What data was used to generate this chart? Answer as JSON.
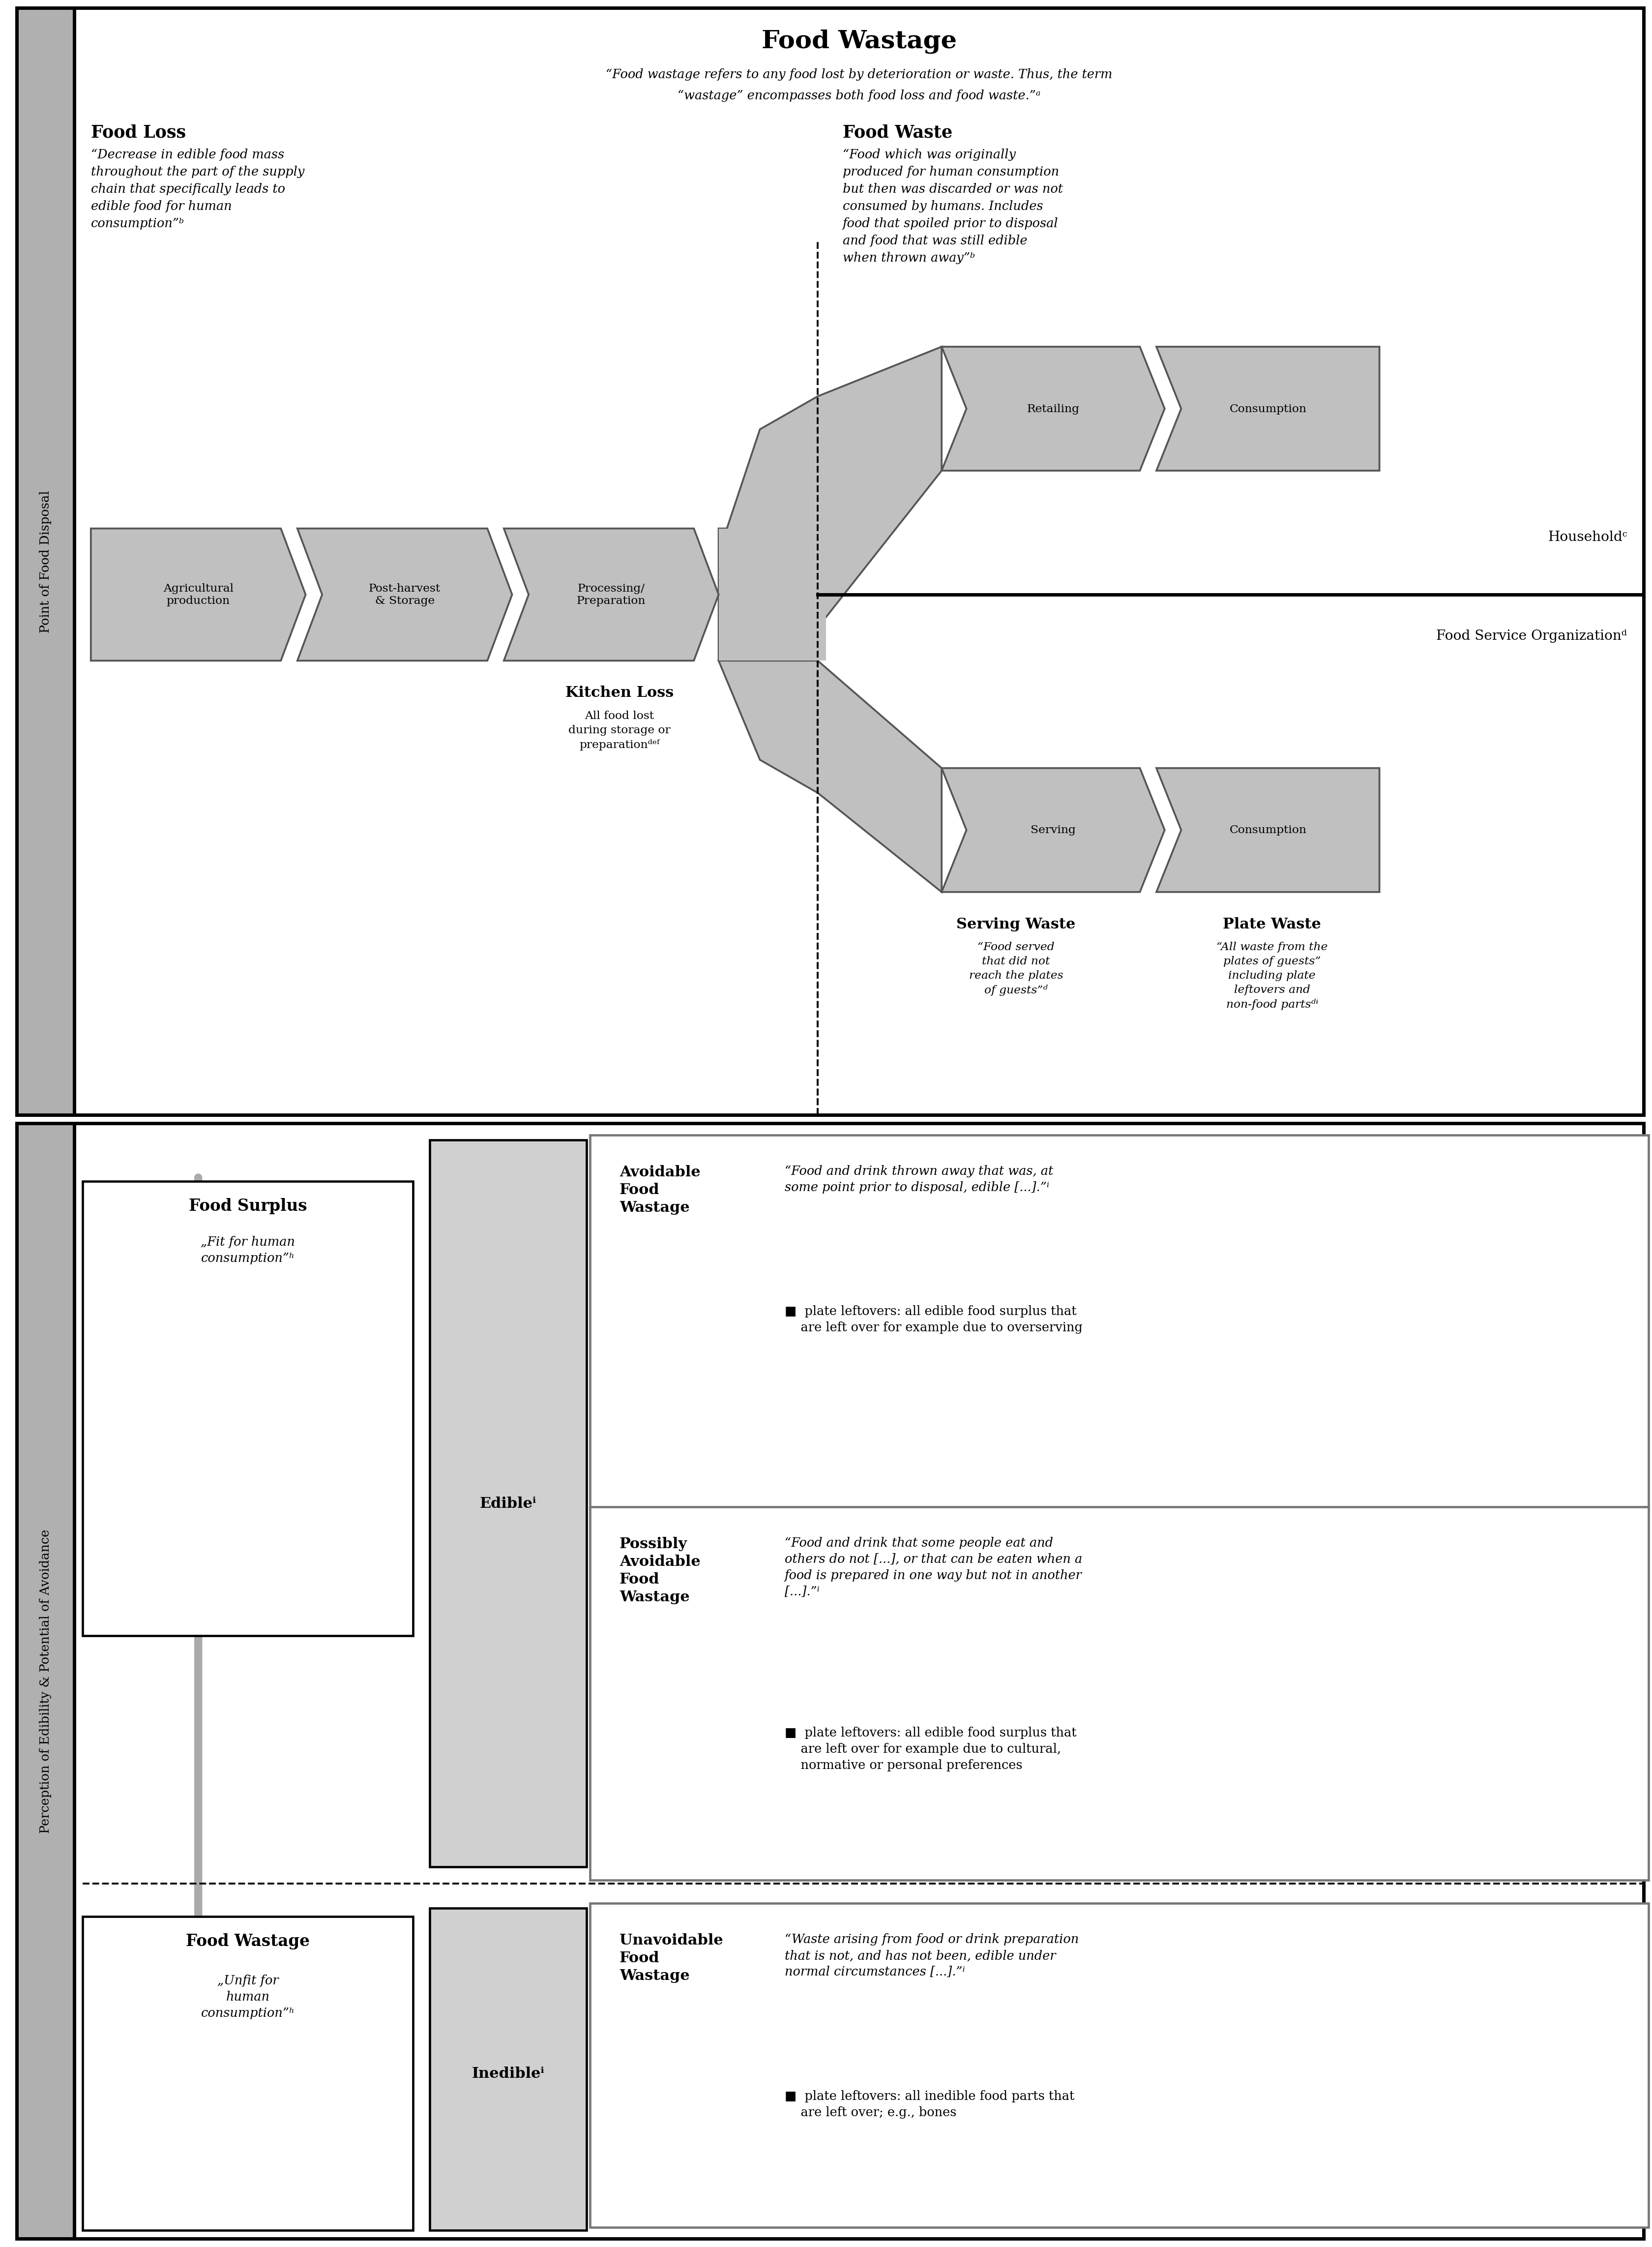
{
  "title": "Food Wastage",
  "food_loss_title": "Food Loss",
  "food_loss_text": "“Decrease in edible food mass\nthroughout the part of the supply\nchain that specifically leads to\nedible food for human\nconsumption”ᵇ",
  "food_waste_title": "Food Waste",
  "food_waste_text": "“Food which was originally\nproduced for human consumption\nbut then was discarded or was not\nconsumed by humans. Includes\nfood that spoiled prior to disposal\nand food that was still edible\nwhen thrown away”ᵇ",
  "supply_chain": [
    "Agricultural\nproduction",
    "Post-harvest\n& Storage",
    "Processing/\nPreparation"
  ],
  "upper_chain": [
    "Retailing",
    "Consumption"
  ],
  "lower_chain": [
    "Serving",
    "Consumption"
  ],
  "household_label": "Householdᶜ",
  "food_service_label": "Food Service Organizationᵈ",
  "kitchen_loss_title": "Kitchen Loss",
  "kitchen_loss_text": "All food lost\nduring storage or\npreparationᵈᵉᶠ",
  "serving_waste_title": "Serving Waste",
  "serving_waste_text": "“Food served\nthat did not\nreach the plates\nof guests”ᵈ",
  "plate_waste_title": "Plate Waste",
  "plate_waste_text": "“All waste from the\nplates of guests”\nincluding plate\nleftovers and\nnon-food partsᵈᶤ",
  "left_axis_label": "Point of Food Disposal",
  "bottom_axis_label": "Perception of Edibility & Potential of Avoidance",
  "food_surplus_title": "Food Surplus",
  "food_surplus_sub": "„Fit for human\nconsumption”ʰ",
  "food_wastage_title": "Food Wastage",
  "food_wastage_sub": "„Unfit for\nhuman\nconsumption”ʰ",
  "edible_label": "Edibleⁱ",
  "inedible_label": "Inedibleⁱ",
  "avoidable_title": "Avoidable\nFood\nWastage",
  "avoidable_quote": "“Food and drink thrown away that was, at\nsome point prior to disposal, edible [...].”ⁱ",
  "avoidable_bullet": "■  plate leftovers: all edible food surplus that\n    are left over for example due to overserving",
  "possibly_title": "Possibly\nAvoidable\nFood\nWastage",
  "possibly_quote": "“Food and drink that some people eat and\nothers do not [...], or that can be eaten when a\nfood is prepared in one way but not in another\n[...].”ⁱ",
  "possibly_bullet": "■  plate leftovers: all edible food surplus that\n    are left over for example due to cultural,\n    normative or personal preferences",
  "unavoidable_title": "Unavoidable\nFood\nWastage",
  "unavoidable_quote": "“Waste arising from food or drink preparation\nthat is not, and has not been, edible under\nnormal circumstances [...].”ⁱ",
  "unavoidable_bullet": "■  plate leftovers: all inedible food parts that\n    are left over; e.g., bones",
  "gray_light": "#c8c8c8",
  "gray_mid": "#aaaaaa",
  "gray_dark": "#888888",
  "gray_sidebar": "#b0b0b0",
  "white": "#ffffff",
  "black": "#000000",
  "quote_line1": "“Food wastage refers to any food lost by deterioration or waste. Thus, the term",
  "quote_line2": "“wastage” encompasses both food loss and food waste.”ᵃ"
}
